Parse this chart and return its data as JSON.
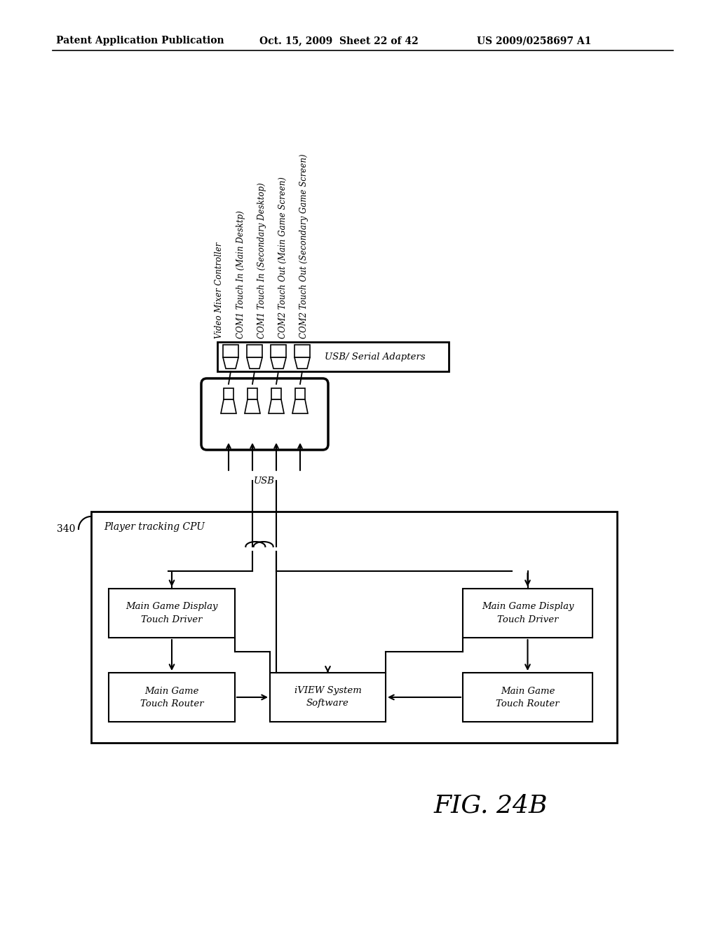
{
  "bg_color": "#ffffff",
  "header_left": "Patent Application Publication",
  "header_mid": "Oct. 15, 2009  Sheet 22 of 42",
  "header_right": "US 2009/0258697 A1",
  "fig_label": "FIG. 24B",
  "label_340": "340",
  "label_usb": "USB",
  "usb_adapters_label": "USB/ Serial Adapters",
  "player_tracking_label": "Player tracking CPU",
  "box1_line1": "Main Game Display",
  "box1_line2": "Touch Driver",
  "box2_line1": "Main Game",
  "box2_line2": "Touch Router",
  "box3_line1": "iVIEW System",
  "box3_line2": "Software",
  "box4_line1": "Main Game Display",
  "box4_line2": "Touch Driver",
  "box5_line1": "Main Game",
  "box5_line2": "Touch Router",
  "rotated_labels": [
    "Video Mixer Controller",
    "COM1 Touch In (Main Desktp)",
    "COM1 Touch In (Secondary Desktop)",
    "COM2 Touch Out (Main Game Screen)",
    "COM2 Touch Out (Secondary Game Screen)"
  ]
}
